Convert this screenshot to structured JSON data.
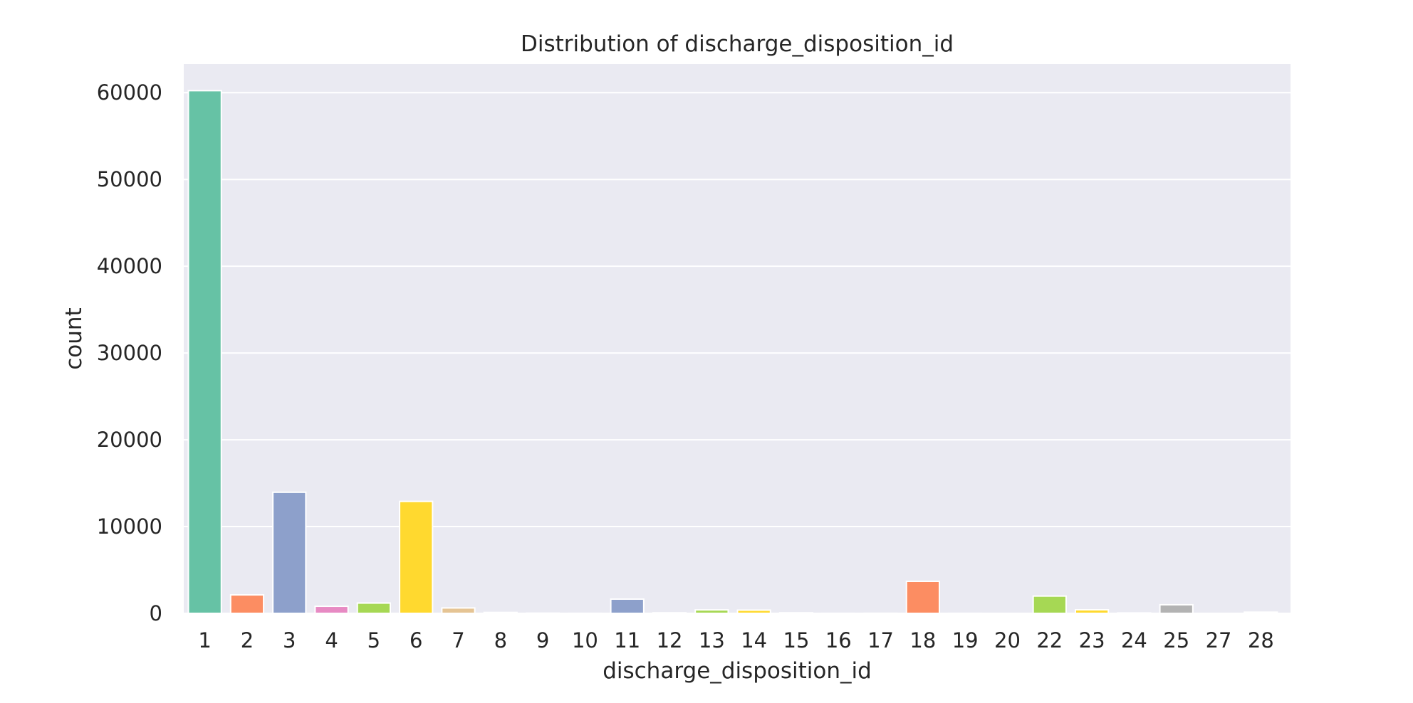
{
  "chart_data": {
    "type": "bar",
    "title": "Distribution of discharge_disposition_id",
    "xlabel": "discharge_disposition_id",
    "ylabel": "count",
    "categories": [
      "1",
      "2",
      "3",
      "4",
      "5",
      "6",
      "7",
      "8",
      "9",
      "10",
      "11",
      "12",
      "13",
      "14",
      "15",
      "16",
      "17",
      "18",
      "19",
      "20",
      "22",
      "23",
      "24",
      "25",
      "27",
      "28"
    ],
    "values": [
      60234,
      2128,
      13954,
      815,
      1184,
      12902,
      623,
      108,
      21,
      6,
      1642,
      63,
      399,
      372,
      63,
      11,
      14,
      3691,
      8,
      2,
      1993,
      412,
      48,
      989,
      5,
      139
    ],
    "ylim": [
      0,
      63300
    ],
    "yticks": [
      0,
      10000,
      20000,
      30000,
      40000,
      50000,
      60000
    ],
    "grid": true,
    "background": "#eaeaf2",
    "grid_color": "#ffffff",
    "colors": [
      "#66c2a5",
      "#fc8d62",
      "#8da0cb",
      "#e78ac3",
      "#a6d854",
      "#ffd92f",
      "#e5c494",
      "#b3b3b3"
    ]
  }
}
